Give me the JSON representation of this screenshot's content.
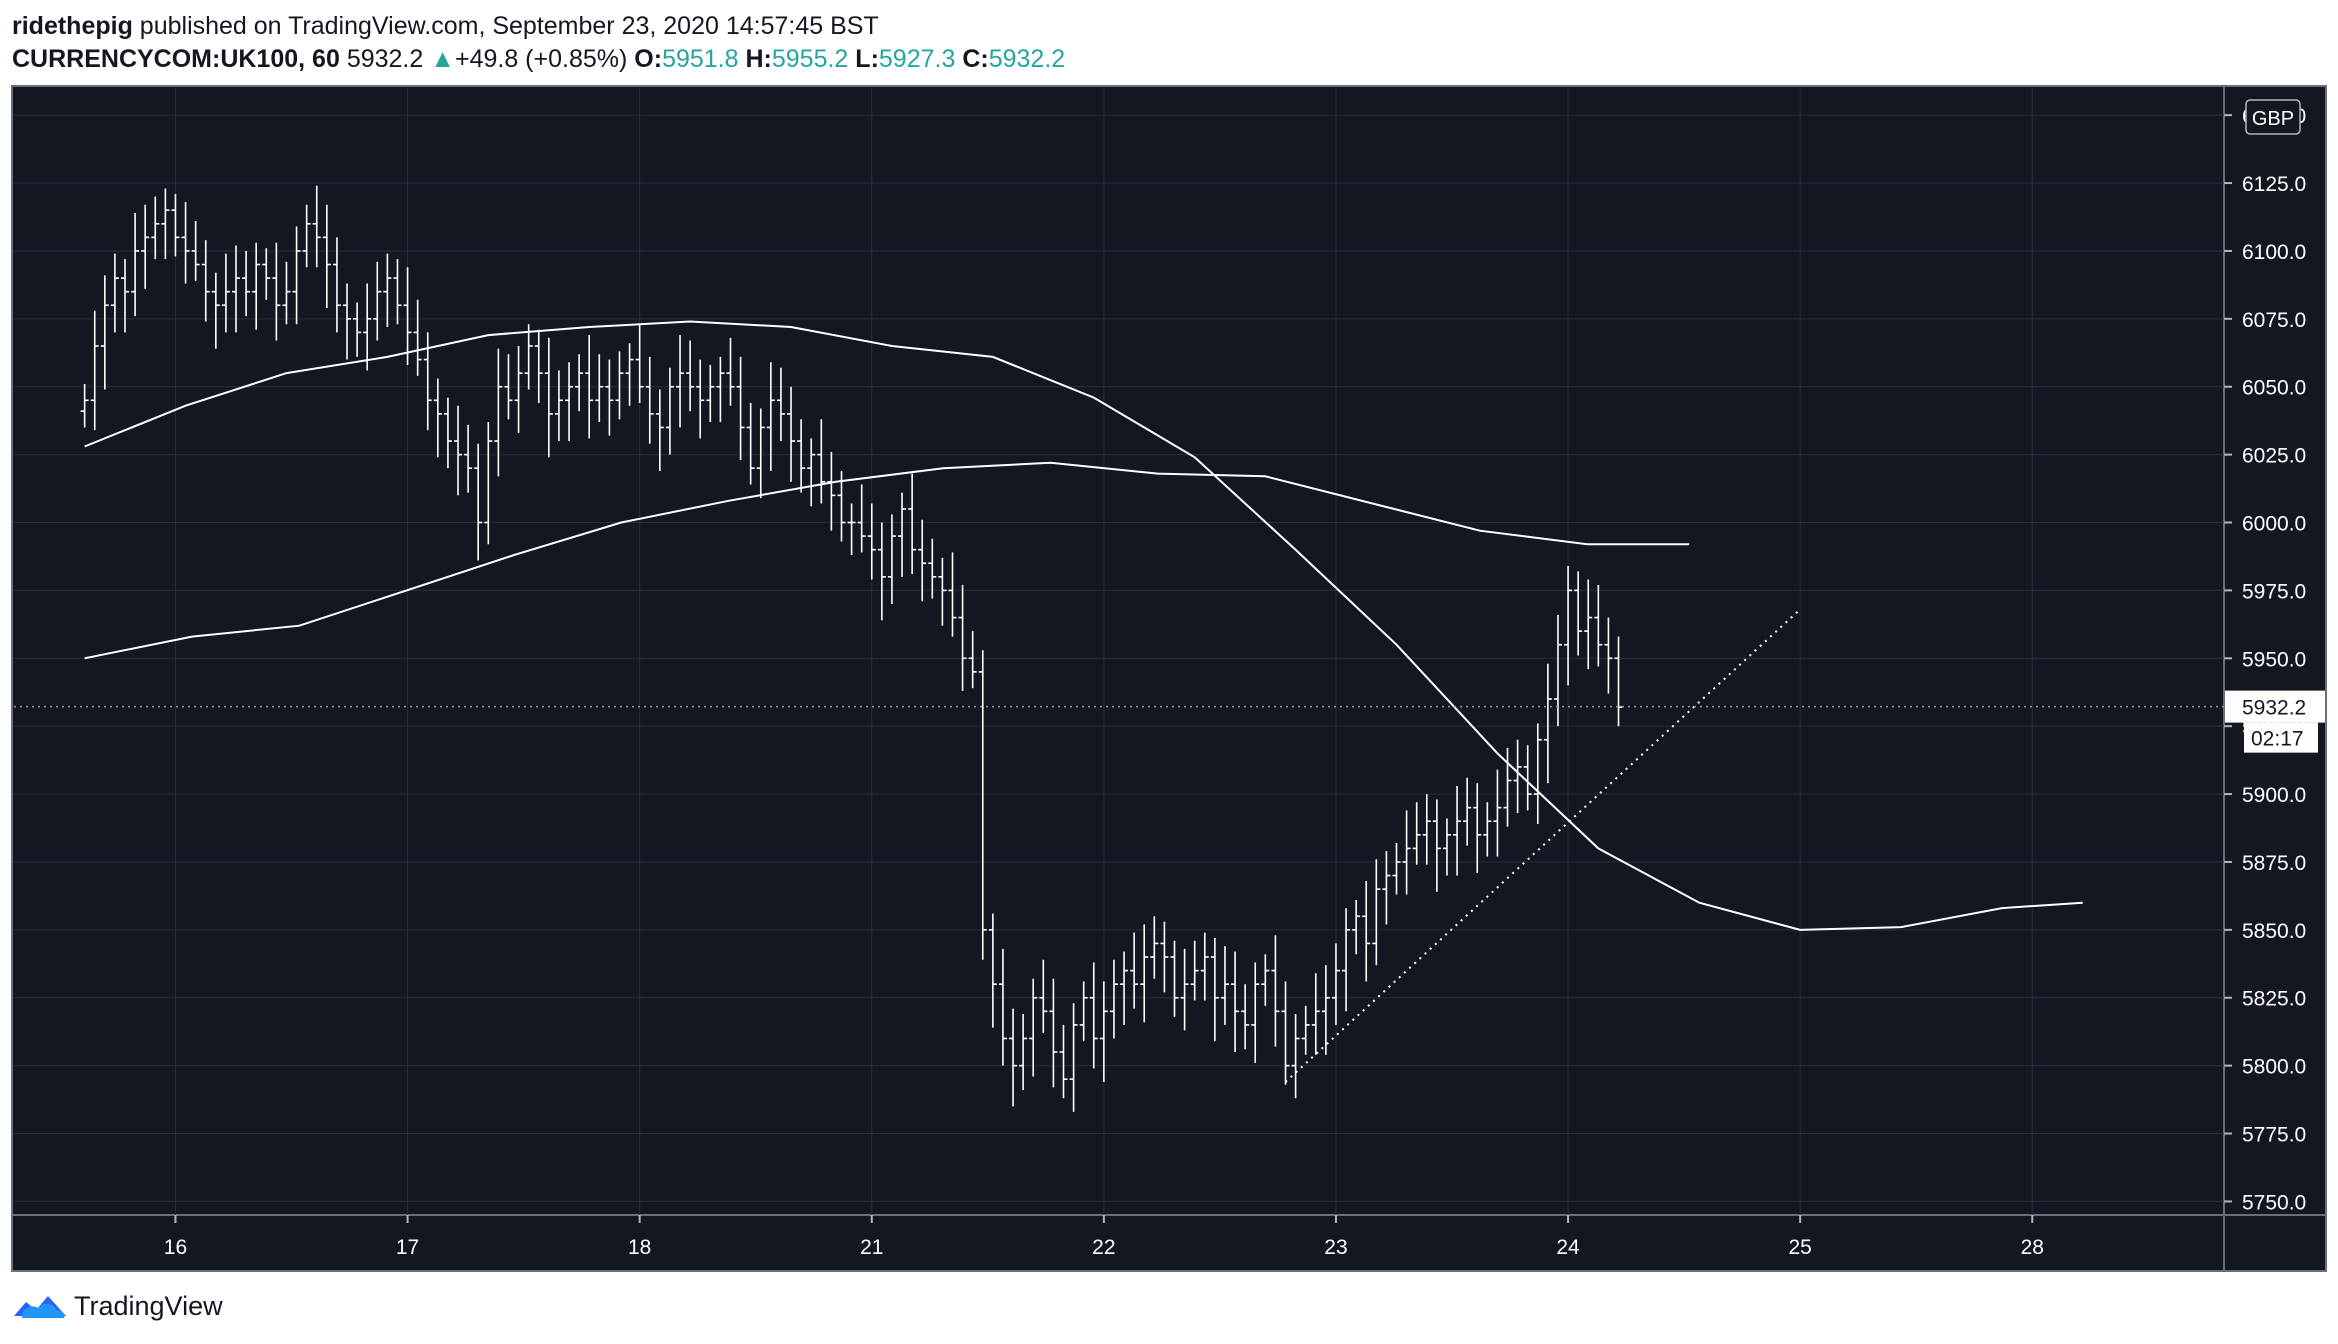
{
  "header": {
    "author": "ridethepig",
    "published_text": "published on TradingView.com, September 23, 2020 14:57:45 BST"
  },
  "symbol_line": {
    "symbol": "CURRENCYCOM:UK100, 60",
    "last": "5932.2",
    "arrow": "▲",
    "change": "+49.8 (+0.85%)",
    "o_label": "O:",
    "o_value": "5951.8",
    "h_label": "H:",
    "h_value": "5955.2",
    "l_label": "L:",
    "l_value": "5927.3",
    "c_label": "C:",
    "c_value": "5932.2"
  },
  "footer": {
    "brand": "TradingView",
    "icon": "tradingview-logo-icon"
  },
  "colors": {
    "background": "#131722",
    "grid": "#2a2e39",
    "line": "#ffffff",
    "axis_text": "#ffffff",
    "up": "#26a69a"
  },
  "chart_data": {
    "type": "ohlc",
    "currency": "GBP",
    "y_ticks": [
      "6150.0",
      "6125.0",
      "6100.0",
      "6075.0",
      "6050.0",
      "6025.0",
      "6000.0",
      "5975.0",
      "5950.0",
      "5925.0",
      "5900.0",
      "5875.0",
      "5850.0",
      "5825.0",
      "5800.0",
      "5775.0",
      "5750.0"
    ],
    "ylim": [
      5745,
      6160
    ],
    "x_ticks": [
      {
        "label": "16",
        "bar": 9
      },
      {
        "label": "17",
        "bar": 32
      },
      {
        "label": "18",
        "bar": 55
      },
      {
        "label": "21",
        "bar": 78
      },
      {
        "label": "22",
        "bar": 101
      },
      {
        "label": "23",
        "bar": 124
      },
      {
        "label": "24",
        "bar": 147
      },
      {
        "label": "25",
        "bar": 170
      },
      {
        "label": "28",
        "bar": 193
      }
    ],
    "x_range_bars": [
      -7,
      212
    ],
    "last_price_label": "5932.2",
    "countdown_label": "02:17",
    "close_series": [
      6045,
      6065,
      6080,
      6090,
      6085,
      6100,
      6105,
      6110,
      6115,
      6105,
      6100,
      6095,
      6085,
      6080,
      6085,
      6090,
      6085,
      6095,
      6090,
      6080,
      6085,
      6100,
      6110,
      6105,
      6095,
      6080,
      6075,
      6070,
      6075,
      6085,
      6090,
      6080,
      6070,
      6060,
      6045,
      6040,
      6030,
      6025,
      6020,
      6000,
      6030,
      6050,
      6045,
      6055,
      6065,
      6055,
      6040,
      6045,
      6050,
      6055,
      6045,
      6050,
      6045,
      6055,
      6060,
      6050,
      6040,
      6035,
      6050,
      6055,
      6050,
      6045,
      6050,
      6055,
      6050,
      6035,
      6020,
      6035,
      6045,
      6040,
      6030,
      6020,
      6025,
      6015,
      6010,
      6000,
      6000,
      5995,
      5990,
      5980,
      5995,
      6005,
      5990,
      5985,
      5980,
      5975,
      5965,
      5950,
      5945,
      5850,
      5830,
      5810,
      5800,
      5810,
      5825,
      5820,
      5805,
      5795,
      5815,
      5825,
      5810,
      5820,
      5830,
      5835,
      5830,
      5840,
      5845,
      5840,
      5825,
      5830,
      5835,
      5840,
      5825,
      5830,
      5820,
      5815,
      5830,
      5835,
      5820,
      5800,
      5810,
      5815,
      5820,
      5825,
      5835,
      5850,
      5855,
      5845,
      5865,
      5870,
      5875,
      5880,
      5885,
      5890,
      5880,
      5885,
      5890,
      5895,
      5885,
      5890,
      5895,
      5905,
      5910,
      5900,
      5920,
      5935,
      5955,
      5975,
      5960,
      5965,
      5955,
      5950,
      5932
    ],
    "ma_fast": [
      [
        0,
        6028
      ],
      [
        10,
        6043
      ],
      [
        20,
        6055
      ],
      [
        30,
        6061
      ],
      [
        40,
        6069
      ],
      [
        50,
        6072
      ],
      [
        60,
        6074
      ],
      [
        70,
        6072
      ],
      [
        80,
        6065
      ],
      [
        90,
        6061
      ],
      [
        100,
        6046
      ],
      [
        110,
        6024
      ],
      [
        120,
        5990
      ],
      [
        130,
        5955
      ],
      [
        140,
        5915
      ],
      [
        150,
        5880
      ],
      [
        160,
        5860
      ],
      [
        170,
        5850
      ],
      [
        180,
        5851
      ],
      [
        190,
        5858
      ],
      [
        198,
        5860
      ]
    ],
    "ma_slow": [
      [
        0,
        5950
      ],
      [
        20,
        5958
      ],
      [
        40,
        5962
      ],
      [
        60,
        5975
      ],
      [
        80,
        5988
      ],
      [
        100,
        6000
      ],
      [
        120,
        6008
      ],
      [
        140,
        6015
      ],
      [
        160,
        6020
      ],
      [
        180,
        6022
      ],
      [
        200,
        6018
      ],
      [
        220,
        6017
      ],
      [
        240,
        6007
      ],
      [
        260,
        5997
      ],
      [
        280,
        5992
      ],
      [
        299,
        5992
      ]
    ],
    "trendline": [
      [
        119,
        5794
      ],
      [
        170,
        5968
      ]
    ]
  }
}
